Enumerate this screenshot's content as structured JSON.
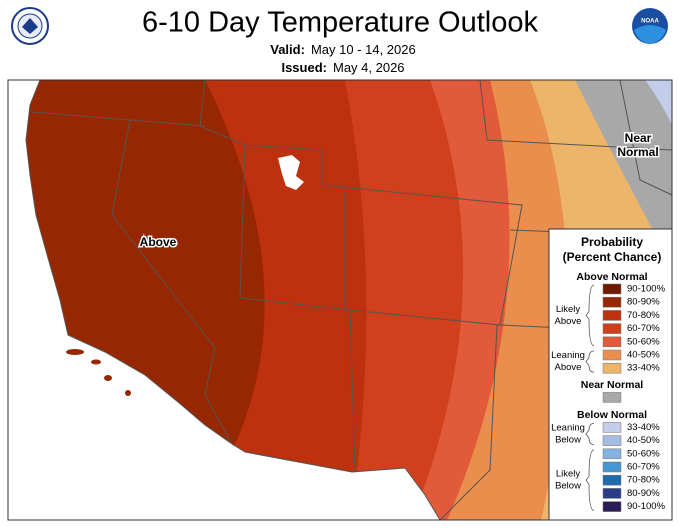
{
  "header": {
    "title": "6-10 Day Temperature Outlook",
    "valid_label": "Valid:",
    "valid": "May 10 - 14, 2026",
    "issued_label": "Issued:",
    "issued": "May 4, 2026",
    "noaa_logo_text": "NOAA"
  },
  "map": {
    "labels": [
      "Above",
      "Near",
      "Normal"
    ]
  },
  "legend": {
    "title": "Probability",
    "subtitle": "(Percent Chance)",
    "sections": [
      {
        "heading": "Above Normal",
        "groups": [
          {
            "label": [
              "Likely",
              "Above"
            ],
            "entries": [
              {
                "range": "90-100%",
                "color": "#6e1c00"
              },
              {
                "range": "80-90%",
                "color": "#962700"
              },
              {
                "range": "70-80%",
                "color": "#bd310e"
              },
              {
                "range": "60-70%",
                "color": "#d0401c"
              },
              {
                "range": "50-60%",
                "color": "#e15a3a"
              }
            ]
          },
          {
            "label": [
              "Leaning",
              "Above"
            ],
            "entries": [
              {
                "range": "40-50%",
                "color": "#e98e4c"
              },
              {
                "range": "33-40%",
                "color": "#ecb56a"
              }
            ]
          }
        ]
      },
      {
        "heading": "Near Normal",
        "swatch_color": "#a8a8a8"
      },
      {
        "heading": "Below Normal",
        "groups": [
          {
            "label": [
              "Leaning",
              "Below"
            ],
            "entries": [
              {
                "range": "33-40%",
                "color": "#c3cce8"
              },
              {
                "range": "40-50%",
                "color": "#a6bce0"
              }
            ]
          },
          {
            "label": [
              "Likely",
              "Below"
            ],
            "entries": [
              {
                "range": "50-60%",
                "color": "#86b2e0"
              },
              {
                "range": "60-70%",
                "color": "#4596d4"
              },
              {
                "range": "70-80%",
                "color": "#1e6aaa"
              },
              {
                "range": "80-90%",
                "color": "#2c3c86"
              },
              {
                "range": "90-100%",
                "color": "#2a1d57"
              }
            ]
          }
        ]
      }
    ]
  }
}
